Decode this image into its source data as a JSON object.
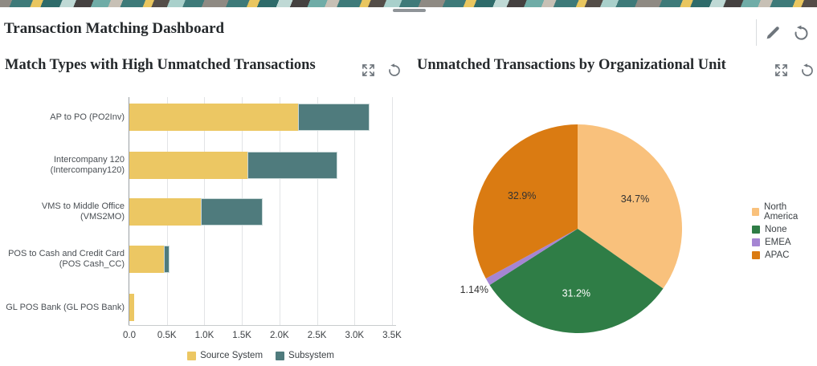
{
  "page": {
    "title": "Transaction Matching Dashboard"
  },
  "header": {
    "icons": [
      "pencil-icon",
      "refresh-icon"
    ]
  },
  "banner_palette": [
    "#3e7a79",
    "#e9c65f",
    "#454140",
    "#bfd9d5",
    "#c7c0b5",
    "#6faca7"
  ],
  "panels": [
    {
      "title": "Match Types with High Unmatched Transactions",
      "icons": [
        "expand-icon",
        "refresh-icon"
      ]
    },
    {
      "title": "Unmatched Transactions by Organizational Unit",
      "icons": [
        "expand-icon",
        "refresh-icon"
      ]
    }
  ],
  "chart_data": [
    {
      "type": "bar",
      "orientation": "horizontal",
      "stacked": true,
      "title": "Match Types with High Unmatched Transactions",
      "categories": [
        "AP to PO (PO2Inv)",
        "Intercompany 120 (Intercompany120)",
        "VMS to Middle Office (VMS2MO)",
        "POS to Cash and Credit Card (POS Cash_CC)",
        "GL POS Bank (GL POS Bank)"
      ],
      "category_lines": [
        [
          "AP to PO (PO2Inv)"
        ],
        [
          "Intercompany 120",
          "(Intercompany120)"
        ],
        [
          "VMS to Middle Office",
          "(VMS2MO)"
        ],
        [
          "POS to Cash and Credit Card",
          "(POS Cash_CC)"
        ],
        [
          "GL POS Bank (GL POS Bank)"
        ]
      ],
      "series": [
        {
          "name": "Source System",
          "color": "#ecc763",
          "values": [
            2250,
            1570,
            950,
            460,
            60
          ]
        },
        {
          "name": "Subsystem",
          "color": "#4f7b7d",
          "values": [
            950,
            1200,
            830,
            75,
            0
          ]
        }
      ],
      "xlim": [
        0,
        3500
      ],
      "xticks": [
        {
          "v": 0,
          "label": "0.0"
        },
        {
          "v": 500,
          "label": "0.5K"
        },
        {
          "v": 1000,
          "label": "1.0K"
        },
        {
          "v": 1500,
          "label": "1.5K"
        },
        {
          "v": 2000,
          "label": "2.0K"
        },
        {
          "v": 2500,
          "label": "2.5K"
        },
        {
          "v": 3000,
          "label": "3.0K"
        },
        {
          "v": 3500,
          "label": "3.5K"
        }
      ],
      "grid": "vertical",
      "legend_position": "bottom"
    },
    {
      "type": "pie",
      "title": "Unmatched Transactions by Organizational Unit",
      "slices": [
        {
          "label": "North America",
          "pct": 34.7,
          "display": "34.7%",
          "color": "#f9c17c",
          "label_color": "#333333",
          "label_inside": true
        },
        {
          "label": "None",
          "pct": 31.2,
          "display": "31.2%",
          "color": "#2f7d46",
          "label_color": "#ffffff",
          "label_inside": true
        },
        {
          "label": "EMEA",
          "pct": 1.14,
          "display": "1.14%",
          "color": "#a585d3",
          "label_color": "#333333",
          "label_inside": false
        },
        {
          "label": "APAC",
          "pct": 32.9,
          "display": "32.9%",
          "color": "#da7b12",
          "label_color": "#333333",
          "label_inside": true
        }
      ],
      "legend_position": "right"
    }
  ]
}
